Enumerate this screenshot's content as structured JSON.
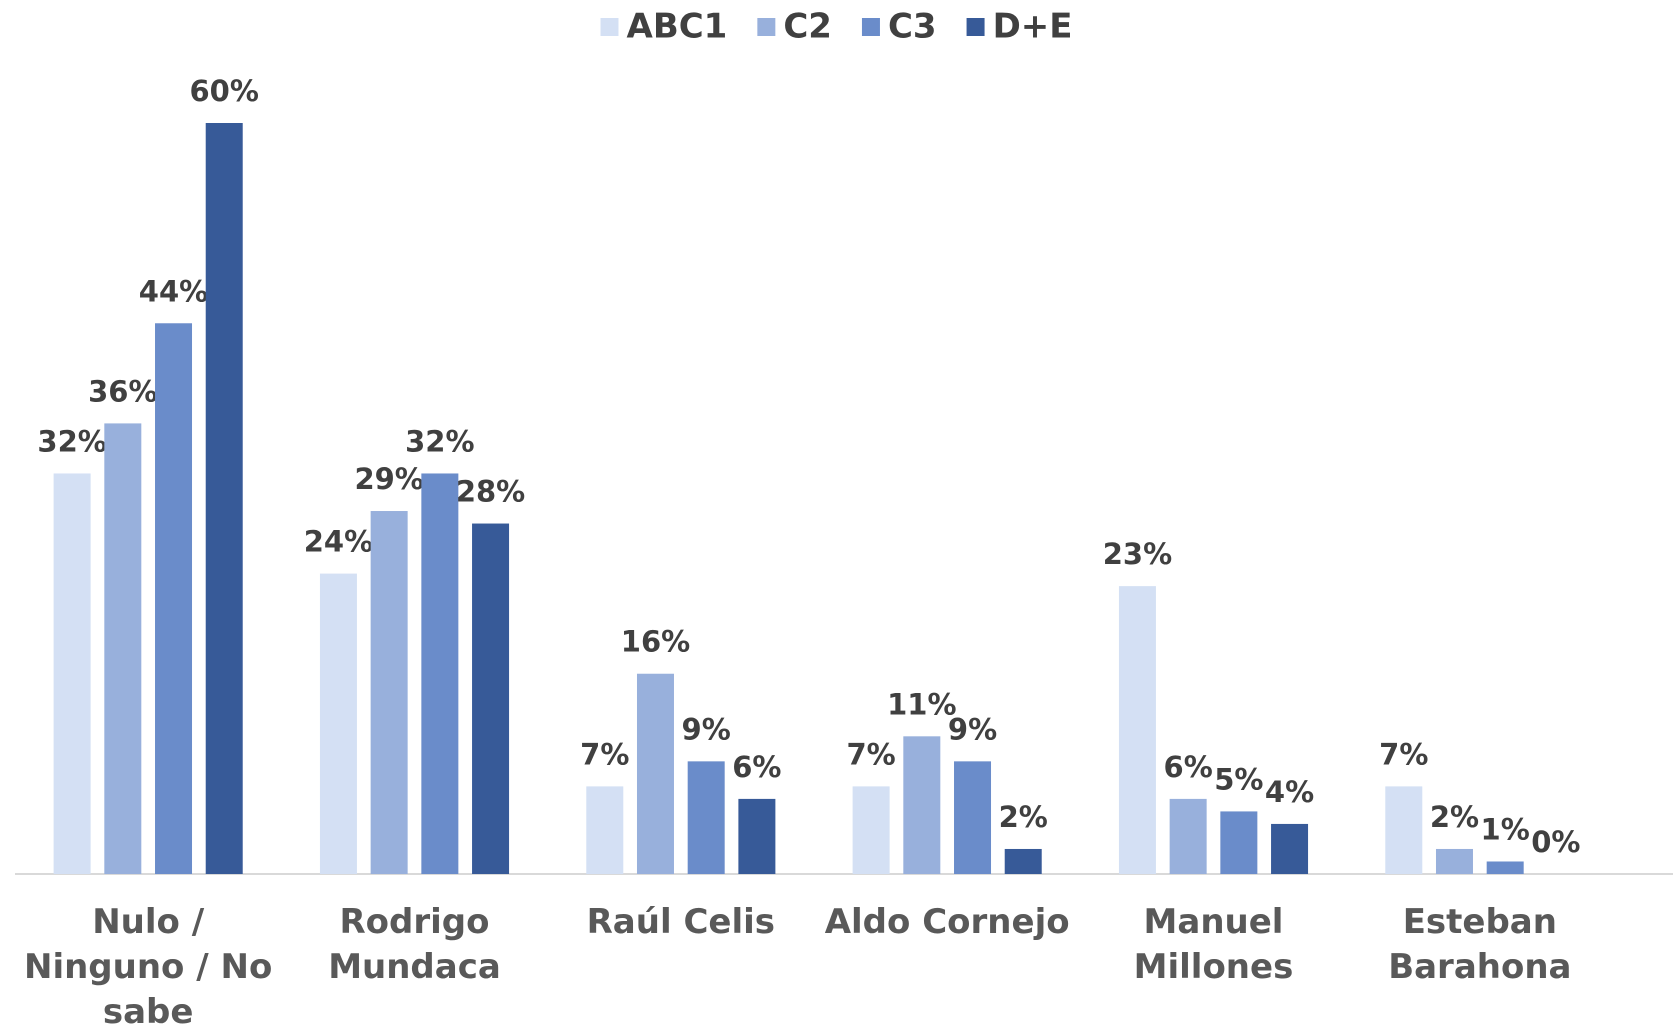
{
  "chart_data": {
    "type": "bar",
    "categories": [
      "Nulo / Ninguno / No sabe",
      "Rodrigo Mundaca",
      "Raúl Celis",
      "Aldo Cornejo",
      "Manuel Millones",
      "Esteban Barahona"
    ],
    "series": [
      {
        "name": "ABC1",
        "color": "#d4e0f4",
        "values": [
          32,
          24,
          7,
          7,
          23,
          7
        ],
        "value_labels": [
          "32%",
          "24%",
          "7%",
          "7%",
          "23%",
          "7%"
        ]
      },
      {
        "name": "C2",
        "color": "#98b0dc",
        "values": [
          36,
          29,
          16,
          11,
          6,
          2
        ],
        "value_labels": [
          "36%",
          "29%",
          "16%",
          "11%",
          "6%",
          "2%"
        ]
      },
      {
        "name": "C3",
        "color": "#6a8cca",
        "values": [
          44,
          32,
          9,
          9,
          5,
          1
        ],
        "value_labels": [
          "44%",
          "32%",
          "9%",
          "9%",
          "5%",
          "1%"
        ]
      },
      {
        "name": "D+E",
        "color": "#375a98",
        "values": [
          60,
          28,
          6,
          2,
          4,
          0
        ],
        "value_labels": [
          "60%",
          "28%",
          "6%",
          "2%",
          "4%",
          "0%"
        ]
      }
    ],
    "legend": "top"
  }
}
